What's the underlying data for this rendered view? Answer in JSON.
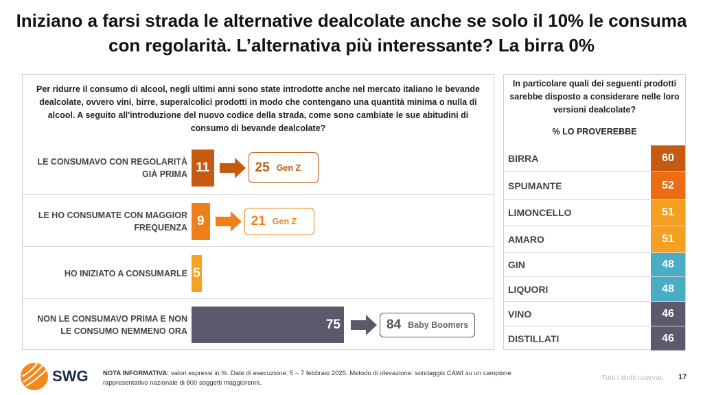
{
  "title": "Iniziano a farsi strada le alternative dealcolate anche se solo il 10% le consuma con regolarità. L’alternativa più interessante? La birra 0%",
  "chart_data": [
    {
      "type": "bar",
      "title": "Per ridurre il consumo di alcool, negli ultimi anni sono state introdotte anche nel mercato italiano le bevande dealcolate, ovvero vini, birre, superalcolici prodotti in modo che contengano una quantità minima o nulla di alcool. A seguito all'introduzione del nuovo codice della strada,  come sono cambiate le sue abitudini di consumo di bevande dealcolate?",
      "categories": [
        "LE CONSUMAVO CON REGOLARITÀ GIÀ PRIMA",
        "LE HO CONSUMATE CON MAGGIOR FREQUENZA",
        "HO INIZIATO A CONSUMARLE",
        "NON LE CONSUMAVO PRIMA E NON LE CONSUMO NEMMENO ORA"
      ],
      "values": [
        11,
        9,
        5,
        75
      ],
      "colors": [
        "#c55a11",
        "#f07f1a",
        "#f9a020",
        "#5d586b"
      ],
      "highlights": [
        {
          "value": 25,
          "label": "Gen Z"
        },
        {
          "value": 21,
          "label": "Gen Z"
        },
        null,
        {
          "value": 84,
          "label": "Baby Boomers"
        }
      ],
      "xlim": [
        0,
        100
      ]
    },
    {
      "type": "table",
      "title": "In particolare quali dei seguenti prodotti sarebbe disposto a considerare nelle loro versioni dealcolate?",
      "column_header": "% LO PROVEREBBE",
      "categories": [
        "BIRRA",
        "SPUMANTE",
        "LIMONCELLO",
        "AMARO",
        "GIN",
        "LIQUORI",
        "VINO",
        "DISTILLATI"
      ],
      "values": [
        60,
        52,
        51,
        51,
        48,
        48,
        46,
        46
      ],
      "colors": [
        "#c55a11",
        "#ec6d13",
        "#f5a023",
        "#f5a023",
        "#4bacc6",
        "#4bacc6",
        "#5d586b",
        "#5d586b"
      ]
    }
  ],
  "footer": {
    "logo": "SWG",
    "note_label": "NOTA INFORMATIVA:",
    "note": " valori espressi in %. Date di esecuzione: 5 – 7 febbraio 2025. Metodo di rilevazione: sondaggio CAWI su un campione rappresentativo nazionale di 800 soggetti maggiorenni.",
    "rights": "Tutti i diritti riservati",
    "page": "17"
  }
}
